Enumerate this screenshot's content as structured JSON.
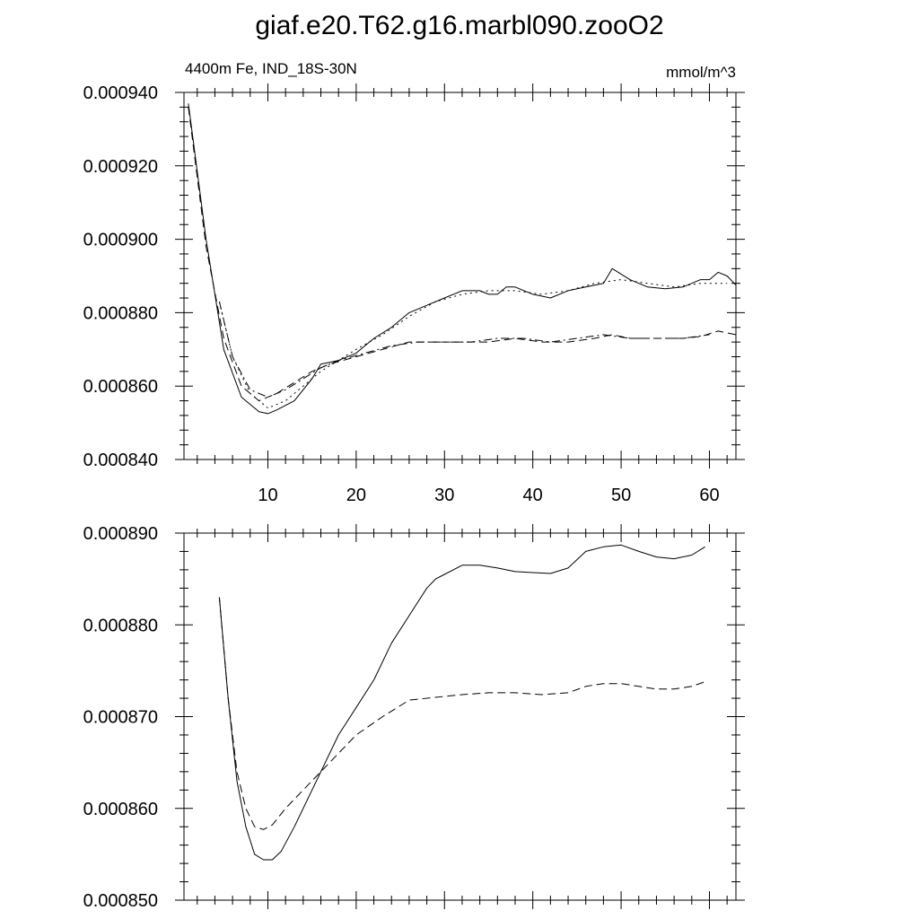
{
  "title": "giaf.e20.T62.g16.marbl090.zooO2",
  "chart_data": [
    {
      "type": "line",
      "subtitle_left": "4400m Fe, IND_18S-30N",
      "subtitle_right": "mmol/m^3",
      "xlabel": "",
      "ylabel": "",
      "xlim": [
        0.5,
        63
      ],
      "ylim": [
        0.00084,
        0.00094
      ],
      "x_ticks": [
        10,
        20,
        30,
        40,
        50,
        60
      ],
      "x_tick_labels": [
        "10",
        "20",
        "30",
        "40",
        "50",
        "60"
      ],
      "y_ticks": [
        0.00084,
        0.00086,
        0.00088,
        0.0009,
        0.00092,
        0.00094
      ],
      "y_tick_labels": [
        "0.000840",
        "0.000860",
        "0.000880",
        "0.000900",
        "0.000920",
        "0.000940"
      ],
      "grid": false,
      "series": [
        {
          "style": "solid",
          "points": [
            [
              1,
              0.000937
            ],
            [
              3,
              0.0009
            ],
            [
              5,
              0.00087
            ],
            [
              7,
              0.000857
            ],
            [
              9,
              0.000853
            ],
            [
              10,
              0.0008525
            ],
            [
              11,
              0.0008535
            ],
            [
              13,
              0.000856
            ],
            [
              15,
              0.000862
            ],
            [
              16,
              0.000866
            ],
            [
              18,
              0.000867
            ],
            [
              20,
              0.000869
            ],
            [
              22,
              0.000873
            ],
            [
              24,
              0.000876
            ],
            [
              26,
              0.00088
            ],
            [
              28,
              0.000882
            ],
            [
              30,
              0.000884
            ],
            [
              32,
              0.000886
            ],
            [
              34,
              0.000886
            ],
            [
              35,
              0.000885
            ],
            [
              36,
              0.000885
            ],
            [
              37,
              0.000887
            ],
            [
              38,
              0.000887
            ],
            [
              40,
              0.000885
            ],
            [
              42,
              0.000884
            ],
            [
              44,
              0.000886
            ],
            [
              46,
              0.000887
            ],
            [
              48,
              0.000888
            ],
            [
              49,
              0.000892
            ],
            [
              51,
              0.000889
            ],
            [
              53,
              0.000887
            ],
            [
              55,
              0.0008865
            ],
            [
              57,
              0.000887
            ],
            [
              59,
              0.000889
            ],
            [
              60,
              0.000889
            ],
            [
              61,
              0.000891
            ],
            [
              62,
              0.00089
            ],
            [
              63,
              0.0008875
            ]
          ]
        },
        {
          "style": "dash",
          "points": [
            [
              1,
              0.000936
            ],
            [
              3,
              0.000898
            ],
            [
              5,
              0.000873
            ],
            [
              7,
              0.00086
            ],
            [
              9,
              0.000856
            ],
            [
              11,
              0.000858
            ],
            [
              13,
              0.000861
            ],
            [
              15,
              0.000864
            ],
            [
              17,
              0.000866
            ],
            [
              20,
              0.000868
            ],
            [
              23,
              0.00087
            ],
            [
              26,
              0.000872
            ],
            [
              29,
              0.000872
            ],
            [
              32,
              0.000872
            ],
            [
              35,
              0.000872
            ],
            [
              38,
              0.000873
            ],
            [
              41,
              0.000872
            ],
            [
              44,
              0.000872
            ],
            [
              47,
              0.000873
            ],
            [
              49,
              0.000874
            ],
            [
              51,
              0.000873
            ],
            [
              54,
              0.000873
            ],
            [
              57,
              0.000873
            ],
            [
              59,
              0.0008735
            ],
            [
              61,
              0.000875
            ],
            [
              63,
              0.000874
            ]
          ]
        },
        {
          "style": "dot",
          "points": [
            [
              4.5,
              0.000883
            ],
            [
              6,
              0.000868
            ],
            [
              8,
              0.000858
            ],
            [
              10,
              0.000854
            ],
            [
              12,
              0.000856
            ],
            [
              14,
              0.00086
            ],
            [
              16,
              0.000864
            ],
            [
              18,
              0.000867
            ],
            [
              20,
              0.00087
            ],
            [
              23,
              0.000874
            ],
            [
              26,
              0.000879
            ],
            [
              29,
              0.000883
            ],
            [
              32,
              0.000885
            ],
            [
              35,
              0.000886
            ],
            [
              38,
              0.000886
            ],
            [
              41,
              0.000885
            ],
            [
              44,
              0.000886
            ],
            [
              47,
              0.000888
            ],
            [
              50,
              0.000889
            ],
            [
              53,
              0.000888
            ],
            [
              56,
              0.000887
            ],
            [
              59,
              0.000888
            ],
            [
              62,
              0.000888
            ]
          ]
        },
        {
          "style": "dashdot",
          "points": [
            [
              4.5,
              0.000883
            ],
            [
              6,
              0.000868
            ],
            [
              8,
              0.000859
            ],
            [
              10,
              0.000857
            ],
            [
              12,
              0.000859
            ],
            [
              14,
              0.000862
            ],
            [
              16,
              0.000865
            ],
            [
              18,
              0.000867
            ],
            [
              21,
              0.000869
            ],
            [
              24,
              0.000871
            ],
            [
              27,
              0.000872
            ],
            [
              30,
              0.000872
            ],
            [
              33,
              0.000872
            ],
            [
              36,
              0.000873
            ],
            [
              39,
              0.000873
            ],
            [
              42,
              0.000872
            ],
            [
              45,
              0.000873
            ],
            [
              48,
              0.000874
            ],
            [
              51,
              0.000873
            ],
            [
              54,
              0.000873
            ],
            [
              57,
              0.000873
            ],
            [
              60,
              0.000874
            ]
          ]
        }
      ]
    },
    {
      "type": "line",
      "xlabel": "",
      "ylabel": "",
      "xlim": [
        0.5,
        63
      ],
      "ylim": [
        0.00085,
        0.00089
      ],
      "x_ticks": [
        10,
        20,
        30,
        40,
        50,
        60
      ],
      "x_tick_labels": [],
      "y_ticks": [
        0.00085,
        0.00086,
        0.00087,
        0.00088,
        0.00089
      ],
      "y_tick_labels": [
        "0.000850",
        "0.000860",
        "0.000870",
        "0.000880",
        "0.000890"
      ],
      "grid": false,
      "series": [
        {
          "style": "solid",
          "points": [
            [
              4.5,
              0.000883
            ],
            [
              5.5,
              0.000872
            ],
            [
              6.5,
              0.000863
            ],
            [
              7.5,
              0.000858
            ],
            [
              8.5,
              0.000855
            ],
            [
              9.5,
              0.0008544
            ],
            [
              10.5,
              0.0008544
            ],
            [
              11.5,
              0.0008553
            ],
            [
              13,
              0.000858
            ],
            [
              15,
              0.000862
            ],
            [
              18,
              0.000868
            ],
            [
              20,
              0.000871
            ],
            [
              22,
              0.000874
            ],
            [
              24,
              0.000878
            ],
            [
              26,
              0.000881
            ],
            [
              28,
              0.000884
            ],
            [
              29,
              0.000885
            ],
            [
              30,
              0.0008855
            ],
            [
              32,
              0.0008865
            ],
            [
              34,
              0.0008865
            ],
            [
              36,
              0.0008862
            ],
            [
              38,
              0.0008858
            ],
            [
              40,
              0.0008857
            ],
            [
              42,
              0.0008856
            ],
            [
              44,
              0.0008862
            ],
            [
              46,
              0.000888
            ],
            [
              48,
              0.0008885
            ],
            [
              50,
              0.0008887
            ],
            [
              52,
              0.000888
            ],
            [
              54,
              0.0008874
            ],
            [
              56,
              0.0008872
            ],
            [
              58,
              0.0008876
            ],
            [
              59.5,
              0.0008885
            ]
          ]
        },
        {
          "style": "dash",
          "points": [
            [
              4.5,
              0.000883
            ],
            [
              5.5,
              0.000872
            ],
            [
              6.5,
              0.000864
            ],
            [
              7.5,
              0.00086
            ],
            [
              8.5,
              0.000858
            ],
            [
              9.5,
              0.0008577
            ],
            [
              10.5,
              0.0008582
            ],
            [
              12,
              0.00086
            ],
            [
              14,
              0.000862
            ],
            [
              17,
              0.000865
            ],
            [
              20,
              0.000868
            ],
            [
              23,
              0.00087
            ],
            [
              26,
              0.0008718
            ],
            [
              29,
              0.0008721
            ],
            [
              32,
              0.0008724
            ],
            [
              35,
              0.0008726
            ],
            [
              38,
              0.0008726
            ],
            [
              41,
              0.0008724
            ],
            [
              44,
              0.0008726
            ],
            [
              46,
              0.0008733
            ],
            [
              48,
              0.0008736
            ],
            [
              50,
              0.0008736
            ],
            [
              52,
              0.0008733
            ],
            [
              54,
              0.000873
            ],
            [
              56,
              0.000873
            ],
            [
              58,
              0.0008733
            ],
            [
              59.5,
              0.0008738
            ]
          ]
        }
      ]
    }
  ]
}
